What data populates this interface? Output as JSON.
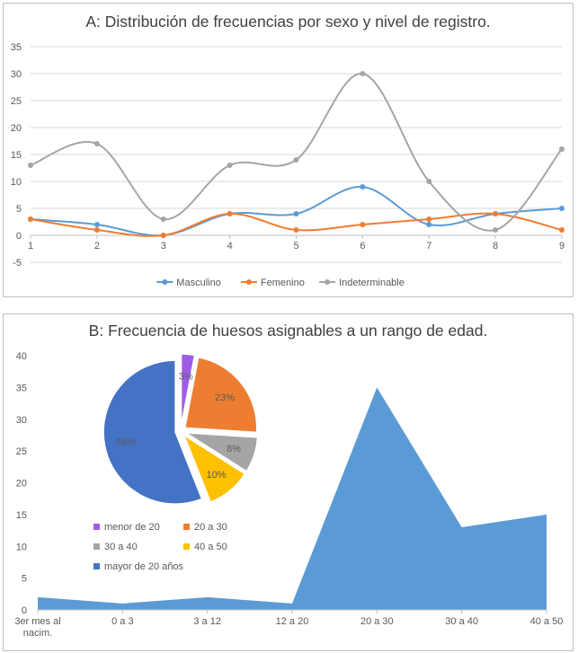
{
  "chart_data": [
    {
      "type": "line",
      "title": "A: Distribución de frecuencias por sexo y nivel de registro.",
      "xlabel": "",
      "ylabel": "",
      "x": [
        1,
        2,
        3,
        4,
        5,
        6,
        7,
        8,
        9
      ],
      "ylim": [
        -5,
        35
      ],
      "yticks": [
        -5,
        0,
        5,
        10,
        15,
        20,
        25,
        30,
        35
      ],
      "grid": true,
      "legend": "bottom",
      "series": [
        {
          "name": "Masculino",
          "color": "#5b9bd5",
          "values": [
            3,
            2,
            0,
            4,
            4,
            9,
            2,
            4,
            5
          ]
        },
        {
          "name": "Femenino",
          "color": "#ed7d31",
          "values": [
            3,
            1,
            0,
            4,
            1,
            2,
            3,
            4,
            1
          ]
        },
        {
          "name": "Indeterminable",
          "color": "#a5a5a5",
          "values": [
            13,
            17,
            3,
            13,
            14,
            30,
            10,
            1,
            16
          ]
        }
      ]
    },
    {
      "type": "area",
      "title": "B: Frecuencia de huesos asignables a un rango de edad.",
      "xlabel": "",
      "ylabel": "",
      "categories": [
        "3er mes al nacim.",
        "0 a 3",
        "3 a 12",
        "12 a 20",
        "20 a 30",
        "30 a 40",
        "40 a 50"
      ],
      "values": [
        2,
        1,
        2,
        1,
        35,
        13,
        15
      ],
      "ylim": [
        0,
        40
      ],
      "yticks": [
        0,
        5,
        10,
        15,
        20,
        25,
        30,
        35,
        40
      ],
      "color": "#5b9bd5",
      "grid": false
    },
    {
      "type": "pie",
      "legend": "bottom-left",
      "slices": [
        {
          "label": "menor de 20",
          "value": 3,
          "text": "3%",
          "color": "#9e5ce6"
        },
        {
          "label": "20 a 30",
          "value": 23,
          "text": "23%",
          "color": "#ed7d31"
        },
        {
          "label": "30 a 40",
          "value": 8,
          "text": "8%",
          "color": "#a5a5a5"
        },
        {
          "label": "40 a 50",
          "value": 10,
          "text": "10%",
          "color": "#ffc000"
        },
        {
          "label": "mayor de 20 años",
          "value": 56,
          "text": "56%",
          "color": "#4472c4"
        }
      ]
    }
  ]
}
